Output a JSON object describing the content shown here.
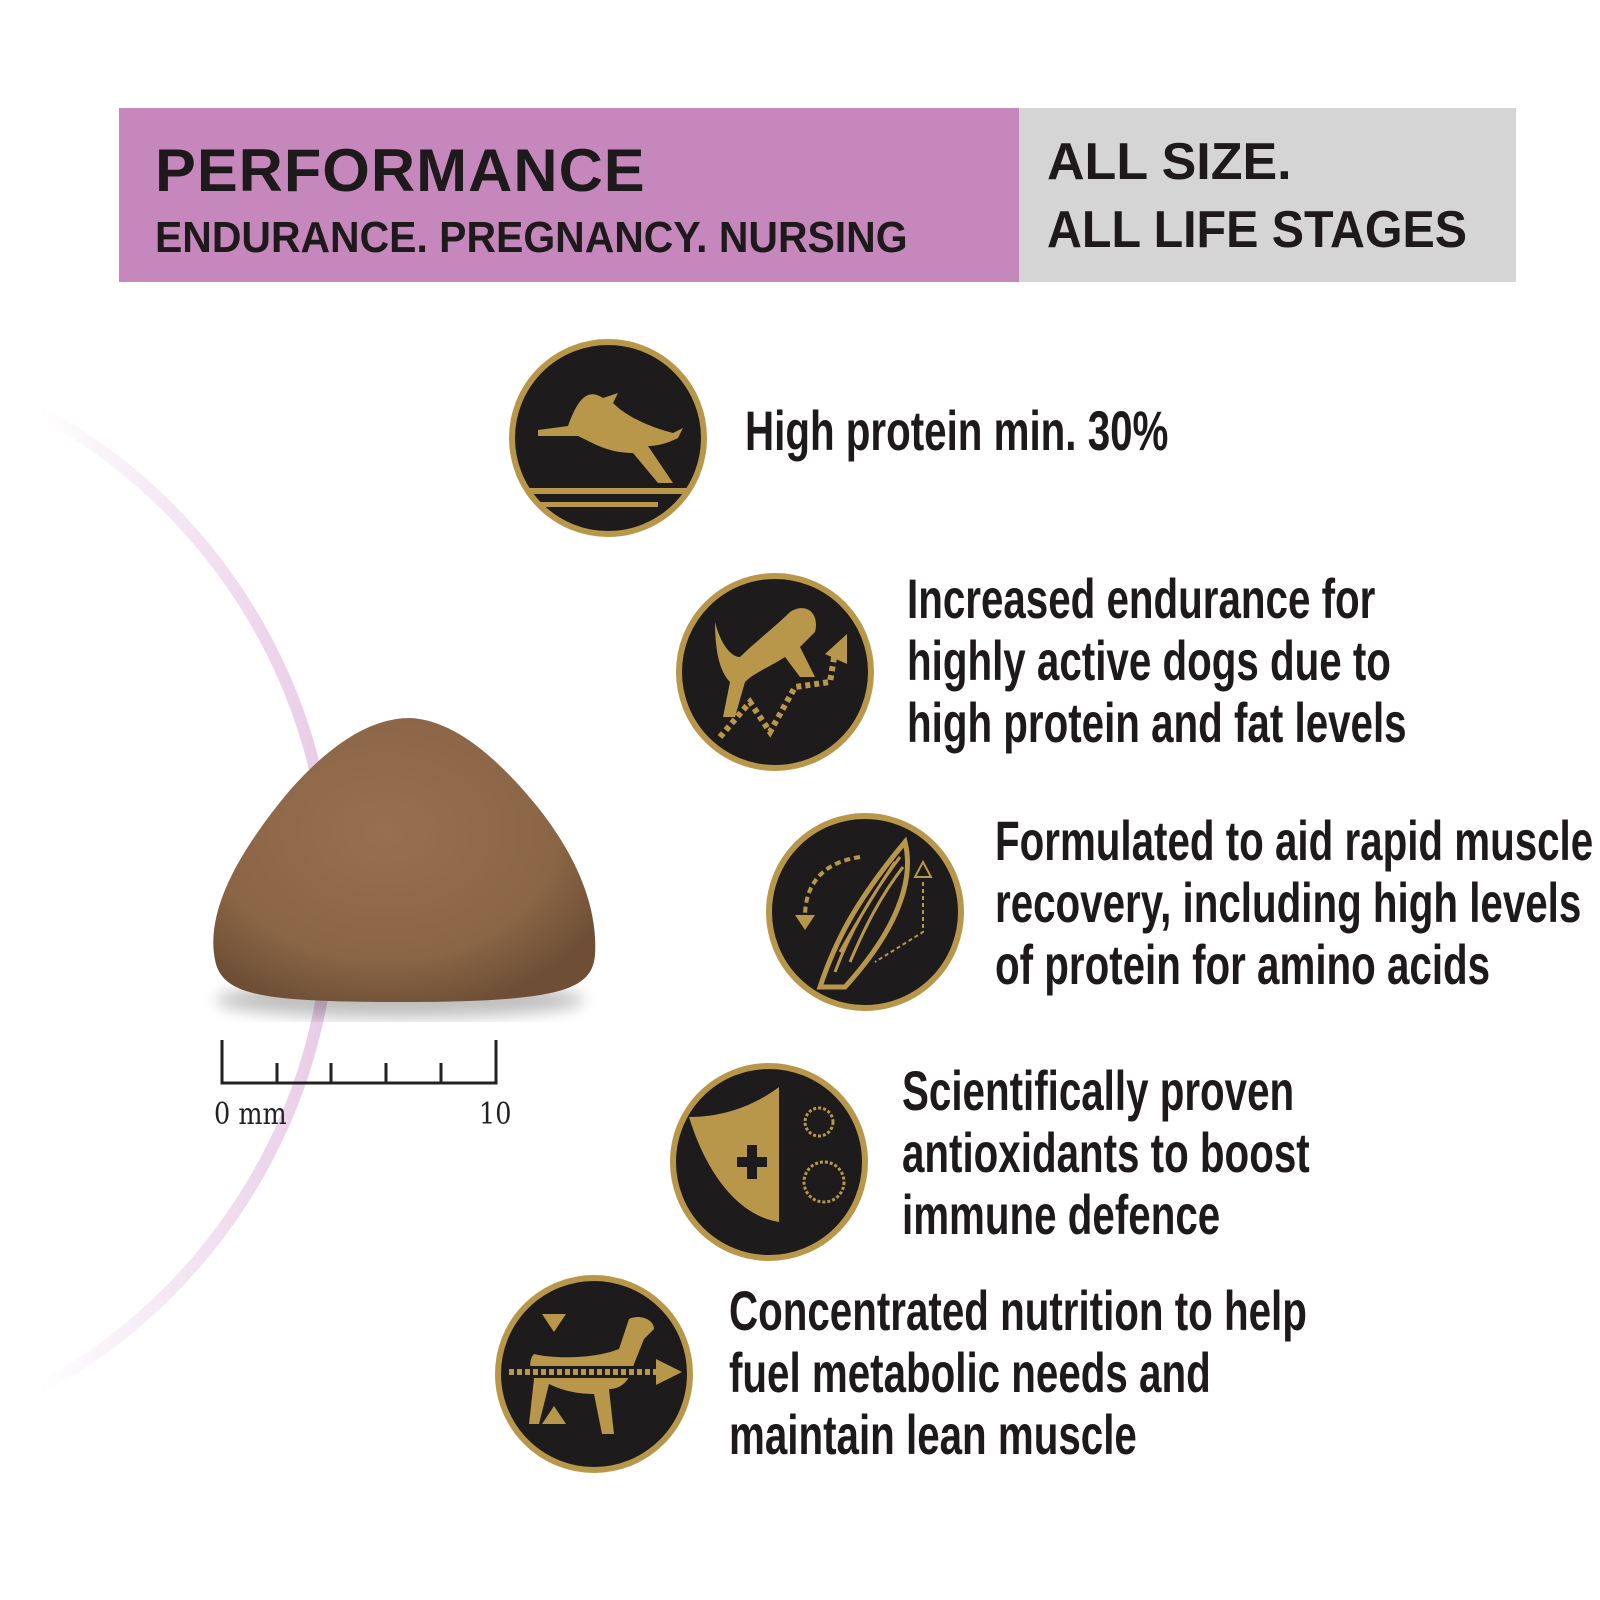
{
  "banner": {
    "left_title": "PERFORMANCE",
    "left_subtitle": "ENDURANCE. PREGNANCY. NURSING",
    "right_line1": "ALL SIZE.",
    "right_line2": "ALL LIFE STAGES",
    "left_color": "#c688bc",
    "right_color": "#d6d5d6"
  },
  "colors": {
    "arc": "#d9a8d6",
    "icon_bg": "#1e1b1c",
    "icon_gold": "#b8964a",
    "text": "#1e1a1c"
  },
  "features": [
    {
      "icon": "leaping-dog-icon",
      "lines": [
        "High protein min. 30%"
      ]
    },
    {
      "icon": "dog-endurance-arrow-icon",
      "lines": [
        "Increased endurance for",
        "highly active dogs due to",
        "high protein and fat levels"
      ]
    },
    {
      "icon": "muscle-recovery-icon",
      "lines": [
        "Formulated to aid rapid muscle",
        "recovery, including high levels",
        "of protein for amino acids"
      ]
    },
    {
      "icon": "shield-immune-icon",
      "lines": [
        "Scientifically proven",
        "antioxidants to boost",
        "immune defence"
      ]
    },
    {
      "icon": "lean-dog-icon",
      "lines": [
        "Concentrated nutrition to help",
        "fuel metabolic needs and",
        "maintain lean muscle"
      ]
    }
  ],
  "scale": {
    "start_label": "0 mm",
    "end_label": "10"
  }
}
